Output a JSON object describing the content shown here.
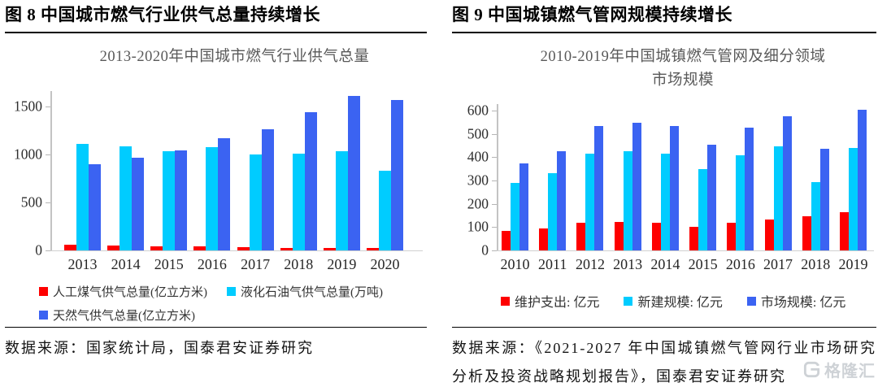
{
  "page": {
    "watermark_text": "格隆汇"
  },
  "figure8": {
    "heading": "图 8 中国城市燃气行业供气总量持续增长",
    "source": "数据来源：国家统计局，国泰君安证券研究"
  },
  "figure9": {
    "heading": "图 9 中国城镇燃气管网规模持续增长",
    "source": "数据来源：《2021-2027 年中国城镇燃气管网行业市场研究分析及投资战略规划报告》，国泰君安证券研究"
  },
  "chart_data": [
    {
      "id": "chart8",
      "type": "bar",
      "title_lines": [
        "2013-2020年中国城市燃气行业供气总量"
      ],
      "categories": [
        "2013",
        "2014",
        "2015",
        "2016",
        "2017",
        "2018",
        "2019",
        "2020"
      ],
      "series": [
        {
          "name": "人工煤气供气总量(亿立方米)",
          "color": "#FE0000",
          "values": [
            57,
            51,
            46,
            41,
            30,
            27,
            25,
            19
          ]
        },
        {
          "name": "液化石油气供气总量(万吨)",
          "color": "#00CCFF",
          "values": [
            1113,
            1085,
            1036,
            1076,
            1001,
            1012,
            1036,
            832
          ]
        },
        {
          "name": "天然气供气总量(亿立方米)",
          "color": "#3B63F2",
          "values": [
            901,
            964,
            1041,
            1172,
            1264,
            1444,
            1608,
            1564
          ]
        }
      ],
      "yticks": [
        0,
        500,
        1000,
        1500
      ],
      "ylim": [
        0,
        1660
      ],
      "xlabel": "",
      "ylabel": "",
      "grid": false,
      "legend_position": "bottom"
    },
    {
      "id": "chart9",
      "type": "bar",
      "title_lines": [
        "2010-2019年中国城镇燃气管网及细分领域",
        "市场规模"
      ],
      "categories": [
        "2010",
        "2011",
        "2012",
        "2013",
        "2014",
        "2015",
        "2016",
        "2017",
        "2018",
        "2019"
      ],
      "series": [
        {
          "name": "维护支出: 亿元",
          "color": "#FE0000",
          "values": [
            82,
            94,
            119,
            123,
            119,
            100,
            120,
            131,
            145,
            163
          ]
        },
        {
          "name": "新建规模: 亿元",
          "color": "#00CCFF",
          "values": [
            290,
            331,
            414,
            425,
            414,
            350,
            408,
            445,
            293,
            441
          ]
        },
        {
          "name": "市场规模: 亿元",
          "color": "#3B63F2",
          "values": [
            373,
            425,
            533,
            548,
            535,
            452,
            528,
            576,
            437,
            605
          ]
        }
      ],
      "yticks": [
        0,
        100,
        200,
        300,
        400,
        500,
        600
      ],
      "ylim": [
        0,
        628
      ],
      "xlabel": "",
      "ylabel": "",
      "grid": false,
      "legend_position": "bottom"
    }
  ]
}
